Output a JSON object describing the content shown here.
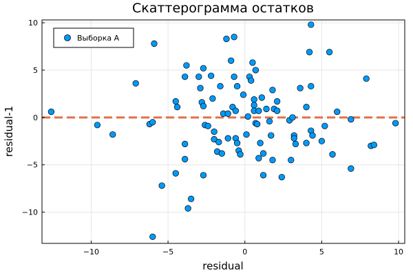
{
  "chart_data": {
    "type": "scatter",
    "title": "Скаттерограмма остатков",
    "xlabel": "residual",
    "ylabel": "residual-1",
    "xlim": [
      -13.2,
      10.4
    ],
    "ylim": [
      -13.3,
      10.3
    ],
    "x_ticks": [
      -10,
      -5,
      0,
      5,
      10
    ],
    "y_ticks": [
      -10,
      -5,
      0,
      5,
      10
    ],
    "x_tick_labels": [
      "−10",
      "−5",
      "0",
      "5",
      "10"
    ],
    "y_tick_labels": [
      "−10",
      "−5",
      "0",
      "5",
      "10"
    ],
    "grid": true,
    "legend_position": "top-left",
    "reference_line": {
      "y": 0,
      "style": "dashed",
      "color": "#e26f46"
    },
    "series": [
      {
        "name": "Выборка А",
        "color": "#009af9",
        "points": [
          [
            -12.6,
            0.6
          ],
          [
            -9.6,
            -0.8
          ],
          [
            -8.6,
            -1.8
          ],
          [
            -7.1,
            3.6
          ],
          [
            -6.2,
            -0.7
          ],
          [
            -6.0,
            -0.5
          ],
          [
            -5.9,
            7.8
          ],
          [
            -6.0,
            -12.6
          ],
          [
            -5.4,
            -7.2
          ],
          [
            -4.5,
            1.7
          ],
          [
            -4.4,
            1.1
          ],
          [
            -4.5,
            -5.9
          ],
          [
            -3.9,
            4.3
          ],
          [
            -3.8,
            5.5
          ],
          [
            -3.9,
            -2.8
          ],
          [
            -3.9,
            -4.4
          ],
          [
            -3.7,
            -9.6
          ],
          [
            -3.5,
            -8.6
          ],
          [
            -3.0,
            4.3
          ],
          [
            -2.9,
            3.1
          ],
          [
            -2.8,
            1.6
          ],
          [
            -2.7,
            1.2
          ],
          [
            -2.7,
            5.2
          ],
          [
            -2.7,
            -6.1
          ],
          [
            -2.6,
            -0.8
          ],
          [
            -2.4,
            -0.9
          ],
          [
            -2.2,
            4.4
          ],
          [
            -2.1,
            2.0
          ],
          [
            -2.0,
            -2.3
          ],
          [
            -2.0,
            -1.5
          ],
          [
            -1.8,
            -3.6
          ],
          [
            -1.7,
            -2.6
          ],
          [
            -1.6,
            3.3
          ],
          [
            -1.5,
            -3.8
          ],
          [
            -1.4,
            0.4
          ],
          [
            -1.2,
            8.3
          ],
          [
            -1.1,
            -2.2
          ],
          [
            -1.1,
            0.4
          ],
          [
            -0.9,
            6.0
          ],
          [
            -0.8,
            1.1
          ],
          [
            -0.7,
            8.5
          ],
          [
            -0.7,
            4.3
          ],
          [
            -0.6,
            0.7
          ],
          [
            -0.6,
            -2.2
          ],
          [
            -0.5,
            3.3
          ],
          [
            -0.5,
            -2.7
          ],
          [
            -0.4,
            -3.5
          ],
          [
            -0.3,
            -3.9
          ],
          [
            -0.1,
            2.4
          ],
          [
            0.1,
            -1.8
          ],
          [
            0.2,
            0.1
          ],
          [
            0.3,
            4.3
          ],
          [
            0.4,
            3.9
          ],
          [
            0.5,
            5.8
          ],
          [
            0.6,
            1.9
          ],
          [
            0.6,
            1.3
          ],
          [
            0.6,
            0.7
          ],
          [
            0.7,
            5.0
          ],
          [
            0.7,
            -0.6
          ],
          [
            0.8,
            -0.7
          ],
          [
            0.9,
            0.7
          ],
          [
            0.9,
            -4.3
          ],
          [
            1.0,
            -2.7
          ],
          [
            1.1,
            2.1
          ],
          [
            1.2,
            -3.8
          ],
          [
            1.2,
            -6.1
          ],
          [
            1.4,
            0.9
          ],
          [
            1.6,
            -0.4
          ],
          [
            1.7,
            -1.9
          ],
          [
            1.8,
            2.9
          ],
          [
            1.8,
            -4.5
          ],
          [
            1.9,
            0.9
          ],
          [
            2.1,
            1.7
          ],
          [
            2.1,
            0.7
          ],
          [
            2.4,
            -6.3
          ],
          [
            2.9,
            -0.3
          ],
          [
            3.0,
            -4.5
          ],
          [
            3.1,
            0.0
          ],
          [
            3.2,
            -1.9
          ],
          [
            3.2,
            -2.2
          ],
          [
            3.3,
            -2.8
          ],
          [
            3.6,
            3.1
          ],
          [
            4.0,
            1.1
          ],
          [
            4.0,
            -2.7
          ],
          [
            4.2,
            6.9
          ],
          [
            4.3,
            3.3
          ],
          [
            4.3,
            -1.4
          ],
          [
            4.3,
            9.8
          ],
          [
            4.4,
            -1.9
          ],
          [
            5.0,
            -2.5
          ],
          [
            5.2,
            -0.9
          ],
          [
            5.5,
            6.9
          ],
          [
            5.7,
            -3.9
          ],
          [
            6.0,
            0.6
          ],
          [
            6.9,
            -0.2
          ],
          [
            6.9,
            -5.4
          ],
          [
            7.9,
            4.1
          ],
          [
            8.2,
            -3.0
          ],
          [
            8.4,
            -2.9
          ],
          [
            9.8,
            -0.6
          ]
        ]
      }
    ]
  }
}
